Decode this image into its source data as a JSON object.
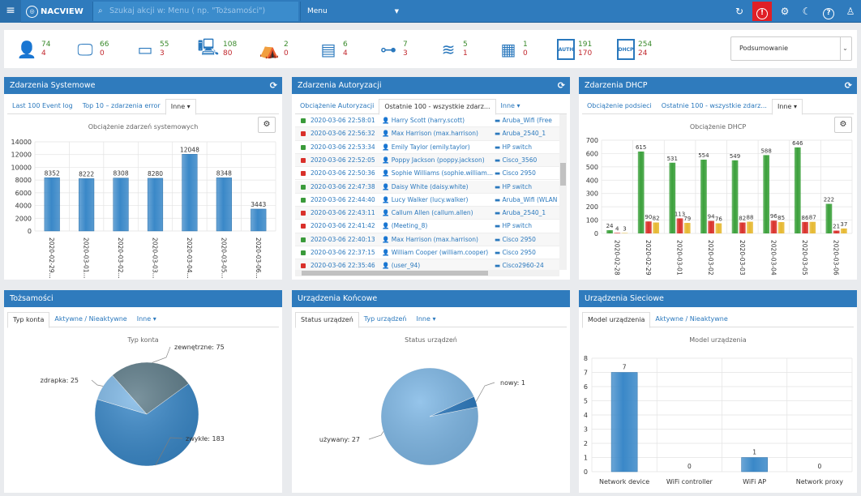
{
  "topbar": {
    "menu_icon": "hamburger-icon",
    "logo_text": "NACVIEW",
    "search_placeholder": "Szukaj akcji w: Menu ( np. \"Tożsamości\")",
    "menu_select": "Menu"
  },
  "stats": [
    {
      "icon": "user-icon",
      "a": "74",
      "b": "4"
    },
    {
      "icon": "monitor-icon",
      "a": "66",
      "b": "0"
    },
    {
      "icon": "network-card-icon",
      "a": "55",
      "b": "3"
    },
    {
      "icon": "unknown-device-icon",
      "a": "108",
      "b": "80"
    },
    {
      "icon": "tent-icon",
      "a": "2",
      "b": "0"
    },
    {
      "icon": "switch-icon",
      "a": "6",
      "b": "4"
    },
    {
      "icon": "topology-icon",
      "a": "7",
      "b": "3"
    },
    {
      "icon": "layers-icon",
      "a": "5",
      "b": "1"
    },
    {
      "icon": "server-icon",
      "a": "1",
      "b": "0"
    },
    {
      "icon": "auth-icon",
      "a": "191",
      "b": "170"
    },
    {
      "icon": "dhcp-icon",
      "a": "254",
      "b": "24"
    }
  ],
  "summary_select": "Podsumowanie",
  "sys": {
    "title": "Zdarzenia Systemowe",
    "tabs": [
      "Last 100 Event log",
      "Top 10 – zdarzenia error",
      "Inne"
    ],
    "chart_title": "Obciążenie zdarzeń systemowych"
  },
  "auth": {
    "title": "Zdarzenia Autoryzacji",
    "tabs": [
      "Obciążenie Autoryzacji",
      "Ostatnie 100 - wszystkie zdarz...",
      "Inne"
    ],
    "rows": [
      {
        "ok": true,
        "date": "2020-03-06 22:58:01",
        "user": "Harry Scott (harry.scott)",
        "dev": "Aruba_Wifi (Free"
      },
      {
        "ok": false,
        "date": "2020-03-06 22:56:32",
        "user": "Max Harrison (max.harrison)",
        "dev": "Aruba_2540_1"
      },
      {
        "ok": true,
        "date": "2020-03-06 22:53:34",
        "user": "Emily Taylor (emily.taylor)",
        "dev": "HP switch"
      },
      {
        "ok": false,
        "date": "2020-03-06 22:52:05",
        "user": "Poppy Jackson (poppy.jackson)",
        "dev": "Cisco_3560"
      },
      {
        "ok": false,
        "date": "2020-03-06 22:50:36",
        "user": "Sophie Williams (sophie.william...",
        "dev": "Cisco 2950"
      },
      {
        "ok": true,
        "date": "2020-03-06 22:47:38",
        "user": "Daisy White (daisy.white)",
        "dev": "HP switch"
      },
      {
        "ok": true,
        "date": "2020-03-06 22:44:40",
        "user": "Lucy Walker (lucy.walker)",
        "dev": "Aruba_Wifi (WLAN"
      },
      {
        "ok": false,
        "date": "2020-03-06 22:43:11",
        "user": "Callum Allen (callum.allen)",
        "dev": "Aruba_2540_1"
      },
      {
        "ok": false,
        "date": "2020-03-06 22:41:42",
        "user": "(Meeting_8)",
        "dev": "HP switch"
      },
      {
        "ok": true,
        "date": "2020-03-06 22:40:13",
        "user": "Max Harrison (max.harrison)",
        "dev": "Cisco 2950"
      },
      {
        "ok": true,
        "date": "2020-03-06 22:37:15",
        "user": "William Cooper (william.cooper)",
        "dev": "Cisco 2950"
      },
      {
        "ok": false,
        "date": "2020-03-06 22:35:46",
        "user": "(user_94)",
        "dev": "Cisco2960-24"
      }
    ]
  },
  "dhcp": {
    "title": "Zdarzenia DHCP",
    "tabs": [
      "Obciążenie podsieci",
      "Ostatnie 100 - wszystkie zdarz...",
      "Inne"
    ],
    "chart_title": "Obciążenie DHCP"
  },
  "ident": {
    "title": "Tożsamości",
    "tabs": [
      "Typ konta",
      "Aktywne / Nieaktywne",
      "Inne"
    ],
    "chart_title": "Typ konta"
  },
  "end": {
    "title": "Urządzenia Końcowe",
    "tabs": [
      "Status urządzeń",
      "Typ urządzeń",
      "Inne"
    ],
    "chart_title": "Status urządzeń"
  },
  "net": {
    "title": "Urządzenia Sieciowe",
    "tabs": [
      "Model urządzenia",
      "Aktywne / Nieaktywne"
    ],
    "chart_title": "Model urządzenia"
  },
  "chart_data": [
    {
      "type": "bar",
      "title": "Obciążenie zdarzeń systemowych",
      "categories": [
        "2020-02-29",
        "2020-03-01",
        "2020-03-02",
        "2020-03-03",
        "2020-03-04",
        "2020-03-05",
        "2020-03-06"
      ],
      "tick_labels": [
        "2020-02-29...",
        "2020-03-01...",
        "2020-03-02...",
        "2020-03-03...",
        "2020-03-04...",
        "2020-03-05...",
        "2020-03-06..."
      ],
      "values": [
        8352,
        8222,
        8308,
        8280,
        12048,
        8348,
        3443
      ],
      "ylim": [
        0,
        14000
      ],
      "yticks": [
        0,
        2000,
        4000,
        6000,
        8000,
        10000,
        12000,
        14000
      ],
      "color": "#3a88c8"
    },
    {
      "type": "bar",
      "title": "Obciążenie DHCP",
      "categories": [
        "2020-02-28",
        "2020-02-29",
        "2020-03-01",
        "2020-03-02",
        "2020-03-03",
        "2020-03-04",
        "2020-03-05",
        "2020-03-06"
      ],
      "series": [
        {
          "color": "#3aa03a",
          "values": [
            24,
            615,
            531,
            554,
            549,
            588,
            646,
            222
          ]
        },
        {
          "color": "#d9302a",
          "values": [
            4,
            90,
            113,
            94,
            82,
            96,
            86,
            21
          ]
        },
        {
          "color": "#e6b830",
          "values": [
            3,
            82,
            79,
            76,
            88,
            85,
            87,
            37
          ]
        }
      ],
      "ylim": [
        0,
        700
      ],
      "yticks": [
        0,
        100,
        200,
        300,
        400,
        500,
        600,
        700
      ]
    },
    {
      "type": "pie",
      "title": "Typ konta",
      "slices": [
        {
          "label": "zwykłe",
          "value": 183,
          "color": "#3a88c8"
        },
        {
          "label": "zdrapka",
          "value": 25,
          "color": "#7fb8e6"
        },
        {
          "label": "zewnętrzne",
          "value": 75,
          "color": "#5e7c89"
        }
      ]
    },
    {
      "type": "pie",
      "title": "Status urządzeń",
      "slices": [
        {
          "label": "używany",
          "value": 27,
          "color": "#7fb8e6"
        },
        {
          "label": "nowy",
          "value": 1,
          "color": "#2a78bd"
        }
      ]
    },
    {
      "type": "bar",
      "title": "Model urządzenia",
      "categories": [
        "Network device",
        "WiFi controller",
        "WiFi AP",
        "Network proxy"
      ],
      "values": [
        7,
        0,
        1,
        0
      ],
      "ylim": [
        0,
        8
      ],
      "yticks": [
        0,
        1,
        2,
        3,
        4,
        5,
        6,
        7,
        8
      ],
      "color": "#3a88c8"
    }
  ]
}
